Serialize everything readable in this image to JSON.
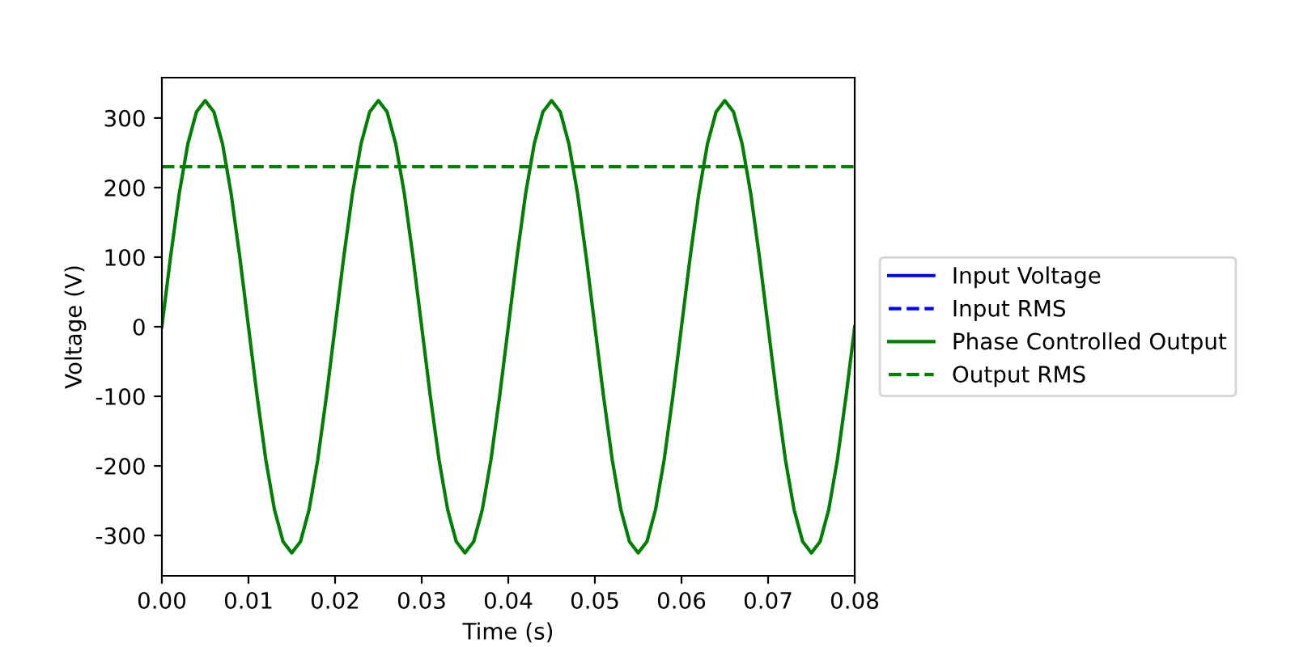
{
  "chart_data": {
    "type": "line",
    "xlabel": "Time (s)",
    "ylabel": "Voltage (V)",
    "x": [
      0,
      0.001,
      0.002,
      0.003,
      0.004,
      0.005,
      0.006,
      0.007,
      0.008,
      0.009,
      0.01,
      0.011,
      0.012,
      0.013,
      0.014,
      0.015,
      0.016,
      0.017,
      0.018,
      0.019,
      0.02,
      0.021,
      0.022,
      0.023,
      0.024,
      0.025,
      0.026,
      0.027,
      0.028,
      0.029,
      0.03,
      0.031,
      0.032,
      0.033,
      0.034,
      0.035,
      0.036,
      0.037,
      0.038,
      0.039,
      0.04,
      0.041,
      0.042,
      0.043,
      0.044,
      0.045,
      0.046,
      0.047,
      0.048,
      0.049,
      0.05,
      0.051,
      0.052,
      0.053,
      0.054,
      0.055,
      0.056,
      0.057,
      0.058,
      0.059,
      0.06,
      0.061,
      0.062,
      0.063,
      0.064,
      0.065,
      0.066,
      0.067,
      0.068,
      0.069,
      0.07,
      0.071,
      0.072,
      0.073,
      0.074,
      0.075,
      0.076,
      0.077,
      0.078,
      0.079,
      0.08
    ],
    "series": [
      {
        "name": "Input Voltage",
        "color": "#0000ff",
        "line_style": "solid",
        "values": [
          null,
          null,
          null,
          null,
          null,
          null,
          null,
          null,
          null,
          null,
          null,
          null,
          null,
          null,
          null,
          null,
          null,
          null,
          null,
          null,
          null,
          null,
          null,
          null,
          null,
          null,
          null,
          null,
          null,
          null,
          null,
          null,
          null,
          null,
          null,
          null,
          null,
          null,
          null,
          null,
          null,
          null,
          null,
          null,
          null,
          null,
          null,
          null,
          null,
          null,
          null,
          null,
          null,
          null,
          null,
          null,
          null,
          null,
          null,
          null,
          null,
          null,
          null,
          null,
          null,
          null,
          null,
          null,
          null,
          null,
          null,
          null,
          null,
          null,
          null,
          null,
          null,
          null,
          null,
          null,
          null
        ]
      },
      {
        "name": "Input RMS",
        "color": "#0000ff",
        "line_style": "dashed",
        "values": [
          null,
          null,
          null,
          null,
          null,
          null,
          null,
          null,
          null,
          null,
          null,
          null,
          null,
          null,
          null,
          null,
          null,
          null,
          null,
          null,
          null,
          null,
          null,
          null,
          null,
          null,
          null,
          null,
          null,
          null,
          null,
          null,
          null,
          null,
          null,
          null,
          null,
          null,
          null,
          null,
          null,
          null,
          null,
          null,
          null,
          null,
          null,
          null,
          null,
          null,
          null,
          null,
          null,
          null,
          null,
          null,
          null,
          null,
          null,
          null,
          null,
          null,
          null,
          null,
          null,
          null,
          null,
          null,
          null,
          null,
          null,
          null,
          null,
          null,
          null,
          null,
          null,
          null,
          null,
          null,
          null
        ]
      },
      {
        "name": "Phase Controlled Output",
        "color": "#008000",
        "line_style": "solid",
        "values": [
          0,
          100,
          191,
          263,
          309,
          325,
          309,
          263,
          191,
          100,
          0,
          -100,
          -191,
          -263,
          -309,
          -325,
          -309,
          -263,
          -191,
          -100,
          0,
          100,
          191,
          263,
          309,
          325,
          309,
          263,
          191,
          100,
          0,
          -100,
          -191,
          -263,
          -309,
          -325,
          -309,
          -263,
          -191,
          -100,
          0,
          100,
          191,
          263,
          309,
          325,
          309,
          263,
          191,
          100,
          0,
          -100,
          -191,
          -263,
          -309,
          -325,
          -309,
          -263,
          -191,
          -100,
          0,
          100,
          191,
          263,
          309,
          325,
          309,
          263,
          191,
          100,
          0,
          -100,
          -191,
          -263,
          -309,
          -325,
          -309,
          -263,
          -191,
          -100,
          0
        ]
      },
      {
        "name": "Output RMS",
        "color": "#008000",
        "line_style": "dashed",
        "x": [
          0,
          0.08
        ],
        "values": [
          230,
          230
        ]
      }
    ],
    "xlim": [
      0,
      0.08
    ],
    "xticks": [
      {
        "value": 0,
        "label": "0.00"
      },
      {
        "value": 0.01,
        "label": "0.01"
      },
      {
        "value": 0.02,
        "label": "0.02"
      },
      {
        "value": 0.03,
        "label": "0.03"
      },
      {
        "value": 0.04,
        "label": "0.04"
      },
      {
        "value": 0.05,
        "label": "0.05"
      },
      {
        "value": 0.06,
        "label": "0.06"
      },
      {
        "value": 0.07,
        "label": "0.07"
      },
      {
        "value": 0.08,
        "label": "0.08"
      }
    ],
    "ylim": [
      -358,
      358
    ],
    "yticks": [
      -300,
      -200,
      -100,
      0,
      100,
      200,
      300
    ],
    "legend": "right",
    "grid": false,
    "marker": "none"
  }
}
